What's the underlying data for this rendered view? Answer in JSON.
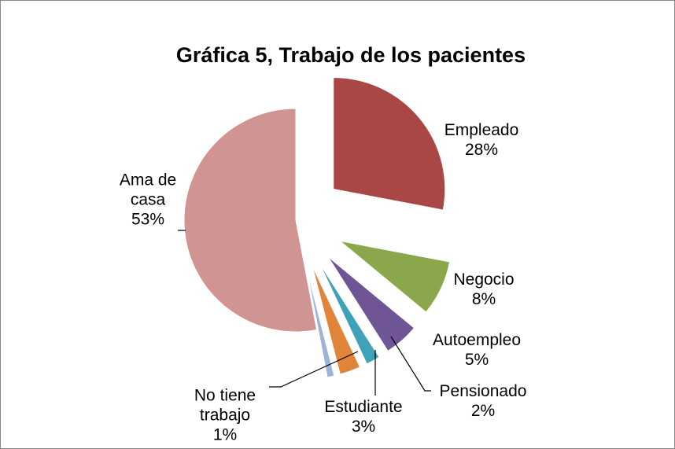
{
  "chart_data": {
    "type": "pie",
    "title": "Gráfica 5,  Trabajo de los pacientes",
    "categories": [
      "Empleado",
      "Negocio",
      "Autoempleo",
      "Pensionado",
      "Estudiante",
      "No tiene trabajo",
      "Ama de casa"
    ],
    "values": [
      28,
      8,
      5,
      2,
      3,
      1,
      53
    ],
    "value_labels": [
      "28%",
      "8%",
      "5%",
      "2%",
      "3%",
      "1%",
      "53%"
    ],
    "colors": [
      "#a94744",
      "#8aa84b",
      "#6f5596",
      "#3fa2b8",
      "#e0843a",
      "#9fb2d8",
      "#d09493"
    ]
  }
}
